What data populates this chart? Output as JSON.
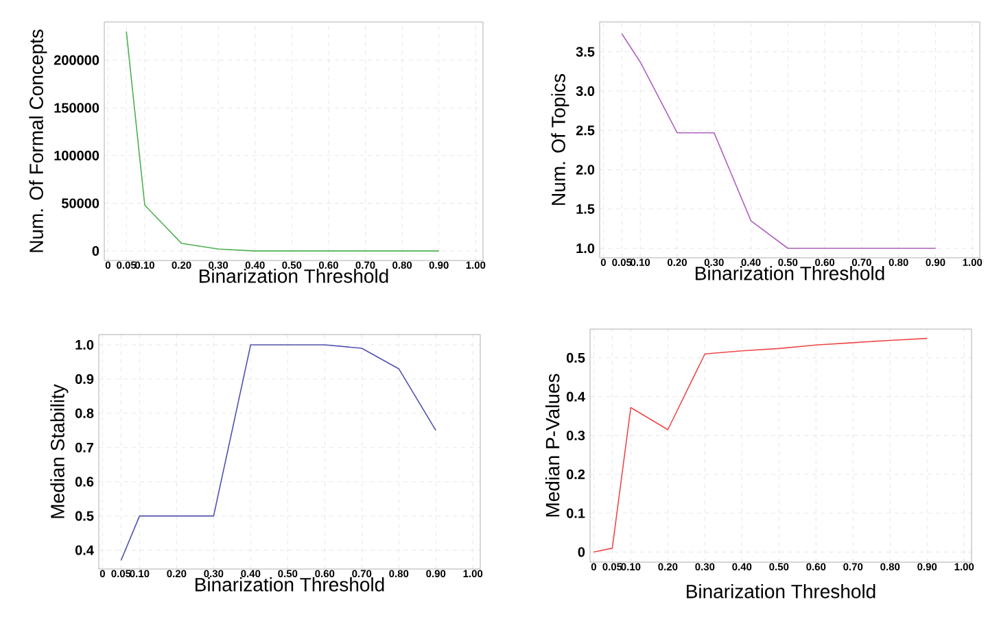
{
  "chart_data": [
    {
      "type": "line",
      "xlabel": "Binarization Threshold",
      "ylabel": "Num. Of Formal Concepts",
      "grid": true,
      "xlim": [
        -0.01,
        1.02
      ],
      "ylim": [
        -10000,
        240000
      ],
      "xticks": [
        0,
        {
          "value": 0.05,
          "label": "0.05"
        },
        {
          "value": 0.1,
          "label": "0.10"
        },
        {
          "value": 0.2,
          "label": "0.20"
        },
        {
          "value": 0.3,
          "label": "0.30"
        },
        {
          "value": 0.4,
          "label": "0.40"
        },
        {
          "value": 0.5,
          "label": "0.50"
        },
        {
          "value": 0.6,
          "label": "0.60"
        },
        {
          "value": 0.7,
          "label": "0.70"
        },
        {
          "value": 0.8,
          "label": "0.80"
        },
        {
          "value": 0.9,
          "label": "0.90"
        },
        {
          "value": 1.0,
          "label": "1.00"
        }
      ],
      "yticks": [
        0,
        50000,
        100000,
        150000,
        200000
      ],
      "x": [
        0.05,
        0.1,
        0.2,
        0.3,
        0.4,
        0.5,
        0.6,
        0.7,
        0.8,
        0.9
      ],
      "series": [
        {
          "color": "#4caf50",
          "values": [
            230000,
            48000,
            8000,
            2000,
            0,
            0,
            0,
            0,
            0,
            0
          ]
        }
      ]
    },
    {
      "type": "line",
      "xlabel": "Binarization Threshold",
      "ylabel": "Num. Of Topics",
      "grid": true,
      "xlim": [
        -0.01,
        1.02
      ],
      "ylim": [
        0.88,
        3.88
      ],
      "xticks": [
        0,
        {
          "value": 0.05,
          "label": "0.05"
        },
        {
          "value": 0.1,
          "label": "0.10"
        },
        {
          "value": 0.2,
          "label": "0.20"
        },
        {
          "value": 0.3,
          "label": "0.30"
        },
        {
          "value": 0.4,
          "label": "0.40"
        },
        {
          "value": 0.5,
          "label": "0.50"
        },
        {
          "value": 0.6,
          "label": "0.60"
        },
        {
          "value": 0.7,
          "label": "0.70"
        },
        {
          "value": 0.8,
          "label": "0.80"
        },
        {
          "value": 0.9,
          "label": "0.90"
        },
        {
          "value": 1.0,
          "label": "1.00"
        }
      ],
      "yticks": [
        {
          "value": 1.0,
          "label": "1.0"
        },
        {
          "value": 1.5,
          "label": "1.5"
        },
        {
          "value": 2.0,
          "label": "2.0"
        },
        {
          "value": 2.5,
          "label": "2.5"
        },
        {
          "value": 3.0,
          "label": "3.0"
        },
        {
          "value": 3.5,
          "label": "3.5"
        }
      ],
      "x": [
        0.05,
        0.1,
        0.2,
        0.3,
        0.4,
        0.5,
        0.6,
        0.7,
        0.8,
        0.9
      ],
      "series": [
        {
          "color": "#b060c0",
          "values": [
            3.73,
            3.37,
            2.47,
            2.47,
            1.35,
            1.0,
            1.0,
            1.0,
            1.0,
            1.0
          ]
        }
      ]
    },
    {
      "type": "line",
      "xlabel": "Binarization Threshold",
      "ylabel": "Median Stability",
      "grid": true,
      "xlim": [
        -0.01,
        1.02
      ],
      "ylim": [
        0.345,
        1.03
      ],
      "xticks": [
        0,
        {
          "value": 0.05,
          "label": "0.05"
        },
        {
          "value": 0.1,
          "label": "0.10"
        },
        {
          "value": 0.2,
          "label": "0.20"
        },
        {
          "value": 0.3,
          "label": "0.30"
        },
        {
          "value": 0.4,
          "label": "0.40"
        },
        {
          "value": 0.5,
          "label": "0.50"
        },
        {
          "value": 0.6,
          "label": "0.60"
        },
        {
          "value": 0.7,
          "label": "0.70"
        },
        {
          "value": 0.8,
          "label": "0.80"
        },
        {
          "value": 0.9,
          "label": "0.90"
        },
        {
          "value": 1.0,
          "label": "1.00"
        }
      ],
      "yticks": [
        0.4,
        0.5,
        0.6,
        0.7,
        0.8,
        0.9,
        {
          "value": 1.0,
          "label": "1.0"
        }
      ],
      "x": [
        0.05,
        0.1,
        0.2,
        0.3,
        0.4,
        0.5,
        0.6,
        0.7,
        0.8,
        0.9
      ],
      "series": [
        {
          "color": "#5050b0",
          "values": [
            0.37,
            0.5,
            0.5,
            0.5,
            1.0,
            1.0,
            1.0,
            0.99,
            0.93,
            0.75
          ]
        }
      ]
    },
    {
      "type": "line",
      "xlabel": "Binarization Threshold",
      "ylabel": "Median P-Values",
      "grid": true,
      "xlim": [
        -0.01,
        1.02
      ],
      "ylim": [
        -0.026,
        0.574
      ],
      "xticks": [
        0,
        {
          "value": 0.05,
          "label": "0.05"
        },
        {
          "value": 0.1,
          "label": "0.10"
        },
        {
          "value": 0.2,
          "label": "0.20"
        },
        {
          "value": 0.3,
          "label": "0.30"
        },
        {
          "value": 0.4,
          "label": "0.40"
        },
        {
          "value": 0.5,
          "label": "0.50"
        },
        {
          "value": 0.6,
          "label": "0.60"
        },
        {
          "value": 0.7,
          "label": "0.70"
        },
        {
          "value": 0.8,
          "label": "0.80"
        },
        {
          "value": 0.9,
          "label": "0.90"
        },
        {
          "value": 1.0,
          "label": "1.00"
        }
      ],
      "yticks": [
        0,
        0.1,
        0.2,
        0.3,
        0.4,
        0.5
      ],
      "x": [
        0,
        0.05,
        0.1,
        0.2,
        0.3,
        0.4,
        0.5,
        0.6,
        0.7,
        0.8,
        0.9
      ],
      "series": [
        {
          "color": "#f04848",
          "values": [
            0,
            0.01,
            0.372,
            0.315,
            0.51,
            0.518,
            0.524,
            0.533,
            0.539,
            0.545,
            0.55
          ]
        }
      ]
    }
  ]
}
